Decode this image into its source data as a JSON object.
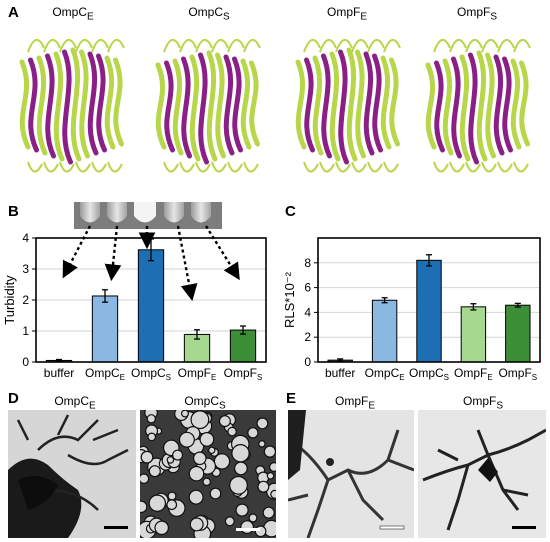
{
  "panels": {
    "a": "A",
    "b": "B",
    "c": "C",
    "d": "D",
    "e": "E"
  },
  "structures": [
    {
      "name": "OmpC",
      "sub": "E"
    },
    {
      "name": "OmpC",
      "sub": "S"
    },
    {
      "name": "OmpF",
      "sub": "E"
    },
    {
      "name": "OmpF",
      "sub": "S"
    }
  ],
  "colors": {
    "strand_green": "#b8d64a",
    "strand_purple": "#8a1f86",
    "bar_buffer": "#555555",
    "bar_ompc_e": "#8bb8e3",
    "bar_ompc_s": "#1d6fb3",
    "bar_ompf_e": "#a6d88f",
    "bar_ompf_s": "#3c8f36"
  },
  "chart_data": [
    {
      "type": "bar",
      "panel": "B",
      "categories": [
        "buffer",
        "OmpC_E",
        "OmpC_S",
        "OmpF_E",
        "OmpF_S"
      ],
      "category_labels": [
        {
          "name": "buffer",
          "sub": ""
        },
        {
          "name": "OmpC",
          "sub": "E"
        },
        {
          "name": "OmpC",
          "sub": "S"
        },
        {
          "name": "OmpF",
          "sub": "E"
        },
        {
          "name": "OmpF",
          "sub": "S"
        }
      ],
      "values": [
        0.05,
        2.13,
        3.62,
        0.89,
        1.03
      ],
      "errors": [
        0.03,
        0.2,
        0.35,
        0.15,
        0.13
      ],
      "ylabel": "Turbidity",
      "ylim": [
        0,
        4
      ],
      "yticks": [
        "0",
        "1",
        "2",
        "3",
        "4"
      ],
      "grid": true
    },
    {
      "type": "bar",
      "panel": "C",
      "categories": [
        "buffer",
        "OmpC_E",
        "OmpC_S",
        "OmpF_E",
        "OmpF_S"
      ],
      "category_labels": [
        {
          "name": "buffer",
          "sub": ""
        },
        {
          "name": "OmpC",
          "sub": "E"
        },
        {
          "name": "OmpC",
          "sub": "S"
        },
        {
          "name": "OmpF",
          "sub": "E"
        },
        {
          "name": "OmpF",
          "sub": "S"
        }
      ],
      "values": [
        0.15,
        4.98,
        8.2,
        4.45,
        4.58
      ],
      "errors": [
        0.1,
        0.2,
        0.45,
        0.25,
        0.15
      ],
      "ylabel": "RLS*10⁻²",
      "ylim": [
        0,
        10
      ],
      "yticks": [
        "0",
        "2",
        "4",
        "6",
        "8"
      ],
      "grid": true
    }
  ],
  "em": {
    "d": [
      {
        "name": "OmpC",
        "sub": "E"
      },
      {
        "name": "OmpC",
        "sub": "S"
      }
    ],
    "e": [
      {
        "name": "OmpF",
        "sub": "E"
      },
      {
        "name": "OmpF",
        "sub": "S"
      }
    ]
  }
}
